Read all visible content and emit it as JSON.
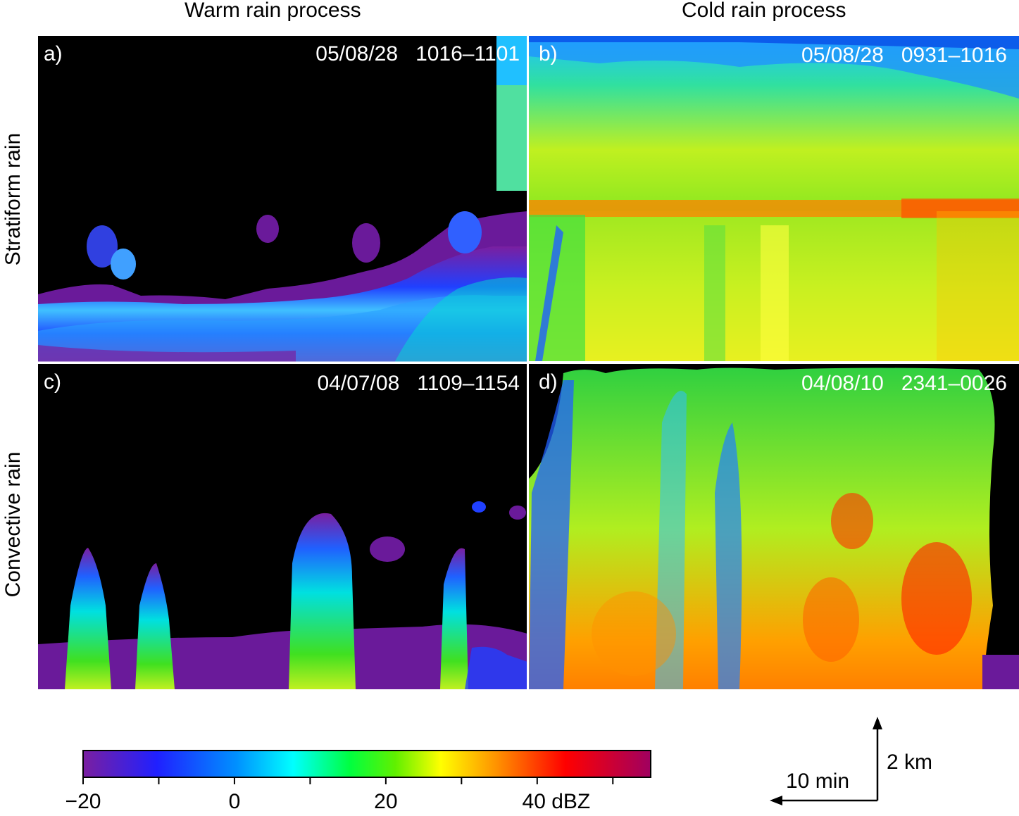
{
  "columns": [
    "Warm rain process",
    "Cold rain process"
  ],
  "rows": [
    "Stratiform rain",
    "Convective rain"
  ],
  "panels": [
    {
      "label": "a)",
      "date": "05/08/28",
      "time": "1016–1101"
    },
    {
      "label": "b)",
      "date": "05/08/28",
      "time": "0931–1016"
    },
    {
      "label": "c)",
      "date": "04/07/08",
      "time": "1109–1154"
    },
    {
      "label": "d)",
      "date": "04/08/10",
      "time": "2341–0026"
    }
  ],
  "colorbar": {
    "min": -20,
    "max": 55,
    "tick_labels": [
      "−20",
      "0",
      "20",
      "40 dBZ"
    ],
    "tick_values": [
      -20,
      0,
      20,
      40
    ],
    "colors": [
      "#7a1fa0",
      "#0000ff",
      "#00b0ff",
      "#00ffff",
      "#00ff40",
      "#40e000",
      "#ffff00",
      "#ff8000",
      "#ff0000",
      "#a00060"
    ]
  },
  "scale": {
    "time": "10 min",
    "height": "2 km"
  }
}
